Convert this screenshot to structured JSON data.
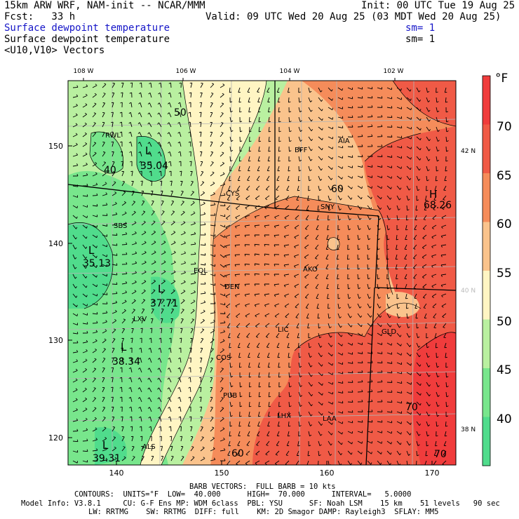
{
  "header": {
    "model_line": "15km ARW WRF, NAM-init -- NCAR/MMM",
    "init_line": "Init: 00 UTC Tue 19 Aug 25",
    "fcst_line": "Fcst:   33 h",
    "valid_line": "Valid: 09 UTC Wed 20 Aug 25 (03 MDT Wed 20 Aug 25)",
    "field1_name": "Surface dewpoint temperature",
    "field1_sm": "sm= 1",
    "field2_name": "Surface dewpoint temperature",
    "field2_sm": "sm= 1",
    "vectors_line": "<U10,V10> Vectors"
  },
  "axes": {
    "top_lon_labels": [
      "108 W",
      "106 W",
      "104 W",
      "102 W"
    ],
    "left_y_labels": [
      "150",
      "140",
      "130",
      "120"
    ],
    "bottom_x_labels": [
      "140",
      "150",
      "160",
      "170"
    ],
    "right_lat_labels": [
      "42 N",
      "40 N",
      "38 N"
    ]
  },
  "colorbar": {
    "unit": "°F",
    "labels": [
      "70",
      "65",
      "60",
      "55",
      "50",
      "45",
      "40"
    ],
    "colors": [
      "#f03c3c",
      "#f05a46",
      "#f58c5a",
      "#fac38c",
      "#fff5c3",
      "#b9f0a0",
      "#78e68c",
      "#50dc8c"
    ]
  },
  "map_labels": {
    "stations": [
      "RWL",
      "BFF",
      "AIA",
      "CYS",
      "SNY",
      "SBS",
      "EQL",
      "AKO",
      "DEN",
      "LXV",
      "LIC",
      "GLD",
      "COS",
      "PUB",
      "LHX",
      "LAA",
      "ALS"
    ],
    "extrema": [
      {
        "kind": "L",
        "value": "35.04"
      },
      {
        "kind": "H",
        "value": "68.26"
      },
      {
        "kind": "L",
        "value": "35.13"
      },
      {
        "kind": "L",
        "value": "37.71"
      },
      {
        "kind": "L",
        "value": "38.34"
      },
      {
        "kind": "L",
        "value": "39.31"
      }
    ],
    "contour_values": [
      "50",
      "40",
      "60",
      "70",
      "70",
      "60"
    ]
  },
  "footer": {
    "line1": "BARB VECTORS:  FULL BARB = 10 kts",
    "line2": "CONTOURS:  UNITS=°F  LOW=  40.000      HIGH=  70.000      INTERVAL=   5.0000",
    "line3": "Model Info: V3.8.1     CU: G-F Ens MP: WDM 6class  PBL: YSU      SF: Noah LSM    15 km    51 levels   90 sec",
    "line4": "LW: RRTMG    SW: RRTMG  DIFF: full    KM: 2D Smagor DAMP: Rayleigh3  SFLAY: MM5"
  }
}
